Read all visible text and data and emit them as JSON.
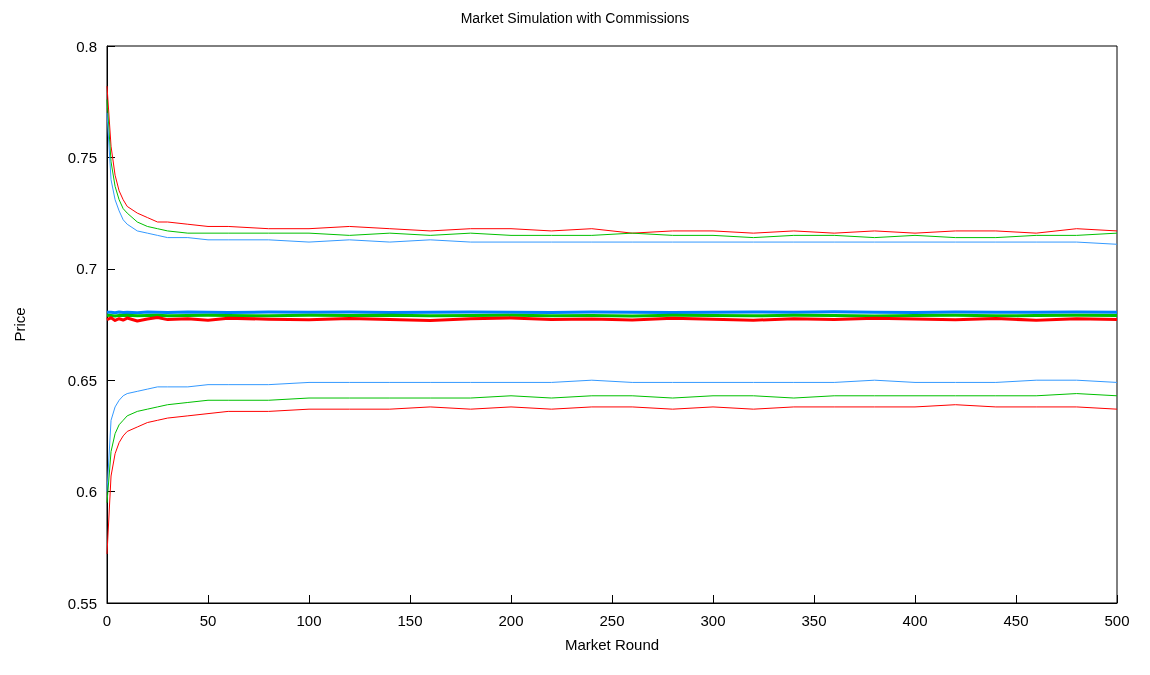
{
  "chart_data": {
    "type": "line",
    "title": "Market Simulation with Commissions",
    "xlabel": "Market Round",
    "ylabel": "Price",
    "x": [
      0,
      2,
      4,
      6,
      8,
      10,
      15,
      20,
      25,
      30,
      40,
      50,
      60,
      80,
      100,
      120,
      140,
      160,
      180,
      200,
      220,
      240,
      260,
      280,
      300,
      320,
      340,
      360,
      380,
      400,
      420,
      440,
      460,
      480,
      500
    ],
    "xlim": [
      0,
      500
    ],
    "xticks": [
      0,
      50,
      100,
      150,
      200,
      250,
      300,
      350,
      400,
      450,
      500
    ],
    "ylim": [
      0.55,
      0.8
    ],
    "yticks": [
      0.55,
      0.6,
      0.65,
      0.7,
      0.75,
      0.8
    ],
    "grid": false,
    "marker": "none",
    "line_style": "solid",
    "series": [
      {
        "color": "#ff0000",
        "values": [
          0.782,
          0.755,
          0.742,
          0.735,
          0.731,
          0.728,
          0.725,
          0.723,
          0.721,
          0.721,
          0.72,
          0.719,
          0.719,
          0.718,
          0.718,
          0.719,
          0.718,
          0.717,
          0.718,
          0.718,
          0.717,
          0.718,
          0.716,
          0.717,
          0.717,
          0.716,
          0.717,
          0.716,
          0.717,
          0.716,
          0.717,
          0.717,
          0.716,
          0.718,
          0.717
        ]
      },
      {
        "color": "#00c000",
        "values": [
          0.776,
          0.748,
          0.737,
          0.731,
          0.727,
          0.725,
          0.721,
          0.719,
          0.718,
          0.717,
          0.716,
          0.716,
          0.716,
          0.716,
          0.716,
          0.715,
          0.716,
          0.715,
          0.716,
          0.715,
          0.715,
          0.715,
          0.716,
          0.715,
          0.715,
          0.714,
          0.715,
          0.715,
          0.714,
          0.715,
          0.714,
          0.714,
          0.715,
          0.715,
          0.716
        ]
      },
      {
        "color": "#3399ff",
        "values": [
          0.77,
          0.74,
          0.731,
          0.726,
          0.722,
          0.72,
          0.717,
          0.716,
          0.715,
          0.714,
          0.714,
          0.713,
          0.713,
          0.713,
          0.712,
          0.713,
          0.712,
          0.713,
          0.712,
          0.712,
          0.712,
          0.712,
          0.712,
          0.712,
          0.712,
          0.712,
          0.712,
          0.712,
          0.712,
          0.712,
          0.712,
          0.712,
          0.712,
          0.712,
          0.711
        ]
      },
      {
        "color": "#0080ff",
        "values": [
          0.6805,
          0.6805,
          0.6803,
          0.6806,
          0.6804,
          0.6805,
          0.6803,
          0.6806,
          0.6805,
          0.6804,
          0.6806,
          0.6805,
          0.6804,
          0.6806,
          0.6805,
          0.6806,
          0.6804,
          0.6805,
          0.6806,
          0.6805,
          0.6804,
          0.6806,
          0.6805,
          0.6804,
          0.6805,
          0.6806,
          0.6805,
          0.6807,
          0.6805,
          0.6804,
          0.6806,
          0.6805,
          0.6805,
          0.6806,
          0.6805
        ]
      },
      {
        "color": "#00c000",
        "values": [
          0.6792,
          0.679,
          0.6788,
          0.6791,
          0.679,
          0.6792,
          0.6789,
          0.679,
          0.6791,
          0.6789,
          0.679,
          0.6791,
          0.679,
          0.6789,
          0.6791,
          0.679,
          0.6792,
          0.6789,
          0.679,
          0.6791,
          0.6789,
          0.679,
          0.6788,
          0.6791,
          0.679,
          0.6789,
          0.6791,
          0.679,
          0.6788,
          0.679,
          0.6791,
          0.6789,
          0.679,
          0.6791,
          0.679
        ]
      },
      {
        "color": "#ff0000",
        "values": [
          0.6772,
          0.678,
          0.6768,
          0.6776,
          0.677,
          0.6779,
          0.6766,
          0.6775,
          0.6781,
          0.6772,
          0.6776,
          0.6769,
          0.6778,
          0.6774,
          0.6771,
          0.6777,
          0.6773,
          0.6768,
          0.6776,
          0.6779,
          0.6772,
          0.6775,
          0.677,
          0.6778,
          0.6774,
          0.6769,
          0.6776,
          0.6772,
          0.6778,
          0.6775,
          0.6771,
          0.6777,
          0.6769,
          0.6776,
          0.6773
        ]
      },
      {
        "color": "#3399ff",
        "values": [
          0.6,
          0.632,
          0.638,
          0.641,
          0.643,
          0.644,
          0.645,
          0.646,
          0.647,
          0.647,
          0.647,
          0.648,
          0.648,
          0.648,
          0.649,
          0.649,
          0.649,
          0.649,
          0.649,
          0.649,
          0.649,
          0.65,
          0.649,
          0.649,
          0.649,
          0.649,
          0.649,
          0.649,
          0.65,
          0.649,
          0.649,
          0.649,
          0.65,
          0.65,
          0.649
        ]
      },
      {
        "color": "#00c000",
        "values": [
          0.595,
          0.618,
          0.626,
          0.63,
          0.632,
          0.634,
          0.636,
          0.637,
          0.638,
          0.639,
          0.64,
          0.641,
          0.641,
          0.641,
          0.642,
          0.642,
          0.642,
          0.642,
          0.642,
          0.643,
          0.642,
          0.643,
          0.643,
          0.642,
          0.643,
          0.643,
          0.642,
          0.643,
          0.643,
          0.643,
          0.643,
          0.643,
          0.643,
          0.644,
          0.643
        ]
      },
      {
        "color": "#ff0000",
        "values": [
          0.572,
          0.607,
          0.617,
          0.622,
          0.625,
          0.627,
          0.629,
          0.631,
          0.632,
          0.633,
          0.634,
          0.635,
          0.636,
          0.636,
          0.637,
          0.637,
          0.637,
          0.638,
          0.637,
          0.638,
          0.637,
          0.638,
          0.638,
          0.637,
          0.638,
          0.637,
          0.638,
          0.638,
          0.638,
          0.638,
          0.639,
          0.638,
          0.638,
          0.638,
          0.637
        ]
      }
    ]
  }
}
